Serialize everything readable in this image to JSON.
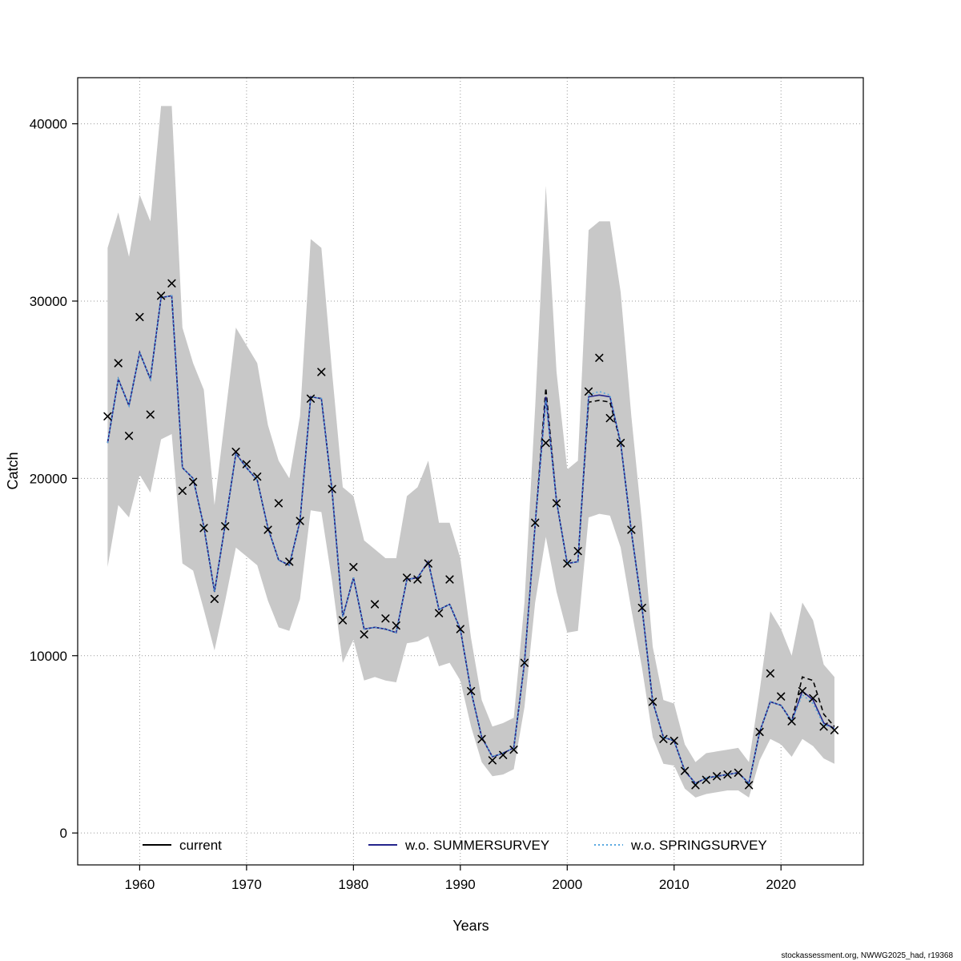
{
  "footer": "stockassessment.org, NWWG2025_had, r19368",
  "chart_data": {
    "type": "line",
    "title": "",
    "xlabel": "Years",
    "ylabel": "Catch",
    "grid": "dotted",
    "legend_position": "bottom-inside",
    "xlim": [
      1954.2,
      2027.7
    ],
    "ylim": [
      -1800,
      42600
    ],
    "x_ticks": [
      1960,
      1970,
      1980,
      1990,
      2000,
      2010,
      2020
    ],
    "y_ticks": [
      0,
      10000,
      20000,
      30000,
      40000
    ],
    "years": [
      1957,
      1958,
      1959,
      1960,
      1961,
      1962,
      1963,
      1964,
      1965,
      1966,
      1967,
      1968,
      1969,
      1970,
      1971,
      1972,
      1973,
      1974,
      1975,
      1976,
      1977,
      1978,
      1979,
      1980,
      1981,
      1982,
      1983,
      1984,
      1985,
      1986,
      1987,
      1988,
      1989,
      1990,
      1991,
      1992,
      1993,
      1994,
      1995,
      1996,
      1997,
      1998,
      1999,
      2000,
      2001,
      2002,
      2003,
      2004,
      2005,
      2006,
      2007,
      2008,
      2009,
      2010,
      2011,
      2012,
      2013,
      2014,
      2015,
      2016,
      2017,
      2018,
      2019,
      2020,
      2021,
      2022,
      2023,
      2024,
      2025
    ],
    "observed_catch": [
      23500,
      26500,
      22400,
      29100,
      23600,
      30300,
      31000,
      19300,
      19800,
      17200,
      13200,
      17300,
      21500,
      20800,
      20100,
      17100,
      18600,
      15300,
      17600,
      24500,
      26000,
      19400,
      12000,
      15000,
      11200,
      12900,
      12100,
      11700,
      14400,
      14300,
      15200,
      12400,
      14300,
      11500,
      8000,
      5300,
      4100,
      4400,
      4700,
      9600,
      17500,
      22000,
      18600,
      15200,
      15900,
      24900,
      26800,
      23400,
      22000,
      17100,
      12700,
      7400,
      5300,
      5200,
      3500,
      2700,
      3000,
      3200,
      3300,
      3400,
      2700,
      5700,
      9000,
      7700,
      6300,
      8000,
      7600,
      6000,
      5800
    ],
    "marker": {
      "shape": "x",
      "color": "#000000",
      "meaning": "observed catch"
    },
    "band": {
      "meaning": "confidence interval",
      "color": "#c8c8c8",
      "upper": [
        33000,
        35000,
        32500,
        36000,
        34500,
        41000,
        41000,
        28500,
        26500,
        25000,
        18500,
        23500,
        28500,
        27500,
        26500,
        23000,
        21000,
        20000,
        23500,
        33500,
        33000,
        26000,
        19500,
        19000,
        16500,
        16000,
        15500,
        15500,
        19000,
        19500,
        21000,
        17500,
        17500,
        15500,
        11000,
        7500,
        6000,
        6200,
        6500,
        13000,
        24000,
        36500,
        26000,
        20500,
        21000,
        34000,
        34500,
        34500,
        30500,
        23500,
        17500,
        10500,
        7500,
        7300,
        5000,
        4000,
        4500,
        4600,
        4700,
        4800,
        4000,
        8000,
        12500,
        11500,
        10000,
        13000,
        12000,
        9500,
        8800
      ],
      "lower": [
        15000,
        18500,
        17800,
        20200,
        19200,
        22200,
        22500,
        15200,
        14800,
        12600,
        10300,
        13100,
        16100,
        15600,
        15100,
        13100,
        11600,
        11400,
        13200,
        18200,
        18100,
        14200,
        9600,
        10900,
        8600,
        8800,
        8600,
        8500,
        10700,
        10800,
        11100,
        9400,
        9600,
        8600,
        6000,
        4000,
        3200,
        3300,
        3600,
        7100,
        13000,
        16700,
        13600,
        11300,
        11400,
        17800,
        18000,
        17900,
        16100,
        12600,
        9300,
        5400,
        3900,
        3800,
        2500,
        2000,
        2200,
        2300,
        2400,
        2400,
        2000,
        4100,
        5300,
        5000,
        4300,
        5300,
        4900,
        4200,
        3900
      ]
    },
    "series": [
      {
        "name": "current",
        "color": "#000000",
        "style": "dashed",
        "values": [
          22000,
          25600,
          24100,
          27100,
          25600,
          30200,
          30300,
          20600,
          20000,
          17300,
          13600,
          17400,
          21400,
          20600,
          19900,
          17200,
          15400,
          15100,
          17600,
          24600,
          24500,
          19300,
          12200,
          14400,
          11500,
          11600,
          11500,
          11300,
          14300,
          14400,
          15300,
          12600,
          12900,
          11500,
          8000,
          5400,
          4300,
          4500,
          4800,
          9600,
          17400,
          25100,
          18700,
          15200,
          15300,
          24300,
          24400,
          24300,
          22000,
          17000,
          12700,
          7400,
          5400,
          5200,
          3500,
          2800,
          3100,
          3200,
          3300,
          3400,
          2800,
          5700,
          7400,
          7200,
          6300,
          8800,
          8600,
          6700,
          6000
        ]
      },
      {
        "name": "w.o. SUMMERSURVEY",
        "color": "#24248c",
        "style": "solid",
        "values": [
          22000,
          25600,
          24100,
          27100,
          25600,
          30200,
          30300,
          20600,
          20000,
          17300,
          13600,
          17400,
          21400,
          20600,
          19900,
          17200,
          15400,
          15100,
          17600,
          24600,
          24500,
          19300,
          12200,
          14400,
          11500,
          11600,
          11500,
          11300,
          14300,
          14400,
          15300,
          12600,
          12900,
          11500,
          8000,
          5400,
          4300,
          4500,
          4800,
          9600,
          17400,
          24600,
          18700,
          15200,
          15300,
          24600,
          24700,
          24600,
          22000,
          17000,
          12700,
          7400,
          5400,
          5200,
          3500,
          2800,
          3100,
          3200,
          3300,
          3400,
          2800,
          5700,
          7400,
          7200,
          6300,
          8000,
          7500,
          6200,
          5900
        ]
      },
      {
        "name": "w.o. SPRINGSURVEY",
        "color": "#57a8e0",
        "style": "dotted",
        "values": [
          22000,
          25600,
          24100,
          27100,
          25600,
          30200,
          30300,
          20600,
          20000,
          17300,
          13600,
          17400,
          21400,
          20600,
          19900,
          17200,
          15400,
          15100,
          17600,
          24600,
          24500,
          19300,
          12200,
          14400,
          11500,
          11600,
          11500,
          11300,
          14300,
          14400,
          15300,
          12600,
          12900,
          11500,
          8000,
          5400,
          4300,
          4500,
          4800,
          9600,
          17400,
          24400,
          18700,
          15200,
          15300,
          24700,
          24900,
          24700,
          22000,
          17000,
          12700,
          7400,
          5400,
          5200,
          3500,
          2800,
          3100,
          3200,
          3300,
          3400,
          2800,
          5700,
          7400,
          7200,
          6300,
          7800,
          7300,
          6100,
          5900
        ]
      }
    ]
  }
}
